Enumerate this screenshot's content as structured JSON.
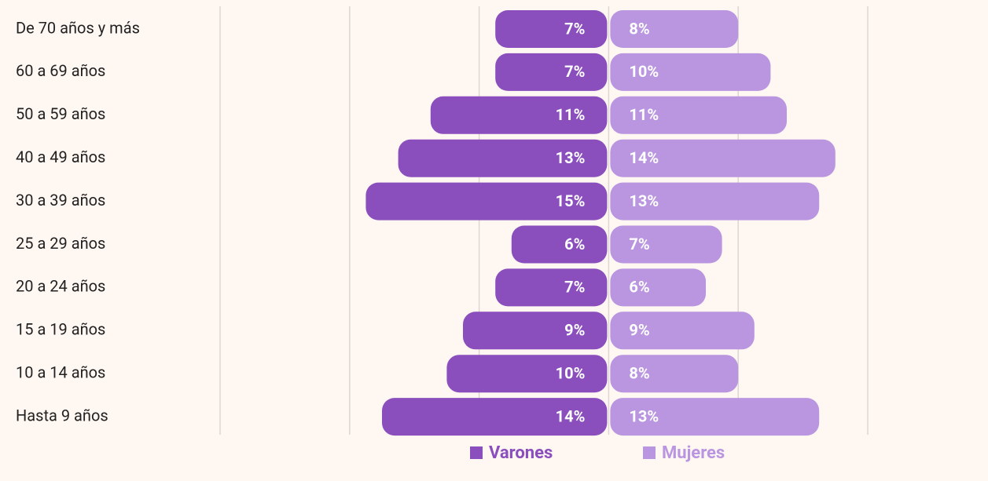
{
  "chart_data": {
    "type": "pyramid",
    "categories": [
      "De 70 años y más",
      "60 a 69 años",
      "50 a 59 años",
      "40 a 49 años",
      "30 a 39 años",
      "25 a 29 años",
      "20 a 24 años",
      "15 a 19 años",
      "10 a 14 años",
      "Hasta 9 años"
    ],
    "series": [
      {
        "name": "Varones",
        "color": "#8a4fbd",
        "side": "left",
        "values": [
          7,
          7,
          11,
          13,
          15,
          6,
          7,
          9,
          10,
          14
        ],
        "value_labels": [
          "7%",
          "7%",
          "11%",
          "13%",
          "15%",
          "6%",
          "7%",
          "9%",
          "10%",
          "14%"
        ]
      },
      {
        "name": "Mujeres",
        "color": "#b996df",
        "side": "right",
        "values": [
          8,
          10,
          11,
          14,
          13,
          7,
          6,
          9,
          8,
          13
        ],
        "value_labels": [
          "8%",
          "10%",
          "11%",
          "14%",
          "13%",
          "7%",
          "6%",
          "9%",
          "8%",
          "13%"
        ]
      }
    ],
    "xlim": [
      -24,
      16
    ],
    "xticks": [
      -24,
      -16,
      -8,
      0,
      8,
      16
    ],
    "grid": true,
    "legend": "bottom"
  }
}
